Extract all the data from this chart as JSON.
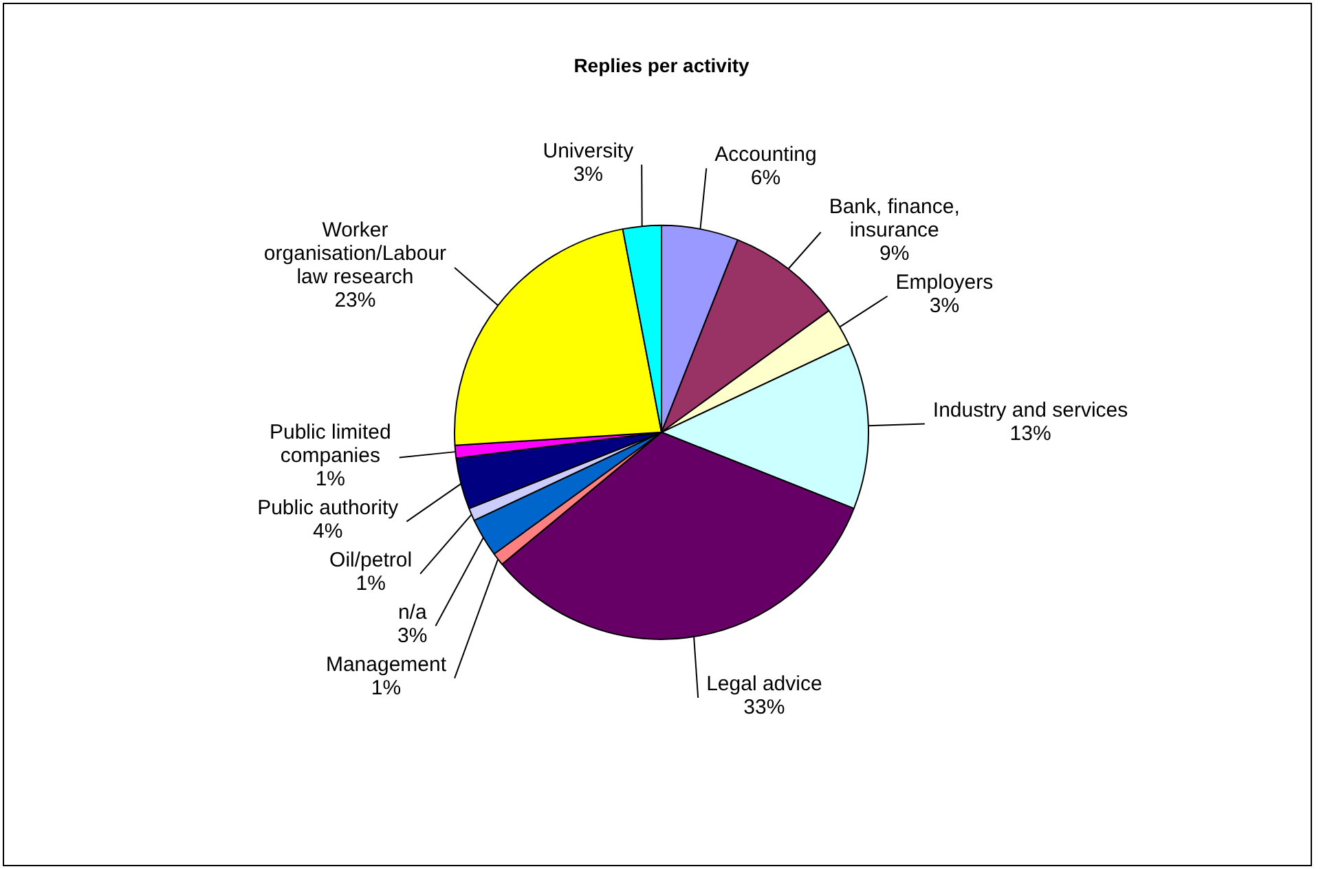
{
  "chart_data": {
    "type": "pie",
    "title": "Replies per activity",
    "categories": [
      "Accounting",
      "Bank, finance, insurance",
      "Employers",
      "Industry and services",
      "Legal advice",
      "Management",
      "n/a",
      "Oil/petrol",
      "Public authority",
      "Public limited companies",
      "Worker organisation/Labour law research",
      "University"
    ],
    "values": [
      6,
      9,
      3,
      13,
      33,
      1,
      3,
      1,
      4,
      1,
      23,
      3
    ],
    "value_labels": [
      "6%",
      "9%",
      "3%",
      "13%",
      "33%",
      "1%",
      "3%",
      "1%",
      "4%",
      "1%",
      "23%",
      "3%"
    ],
    "colors": [
      "#9999ff",
      "#993366",
      "#ffffcc",
      "#ccffff",
      "#660066",
      "#ff8080",
      "#0066cc",
      "#ccccff",
      "#000080",
      "#ff00ff",
      "#ffff00",
      "#00ffff"
    ],
    "legend": false
  }
}
